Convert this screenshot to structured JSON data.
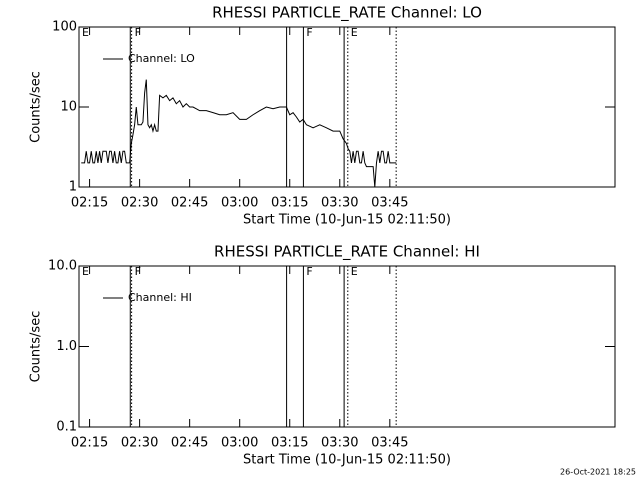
{
  "chart_data": [
    {
      "type": "line",
      "title": "RHESSI PARTICLE_RATE Channel: LO",
      "xlabel": "Start Time (10-Jun-15 02:11:50)",
      "ylabel": "Counts/sec",
      "log_y": true,
      "xlim": [
        131.83,
        292.5
      ],
      "ylim": [
        1,
        100
      ],
      "xticks": [
        {
          "value": 135,
          "label": "02:15"
        },
        {
          "value": 150,
          "label": "02:30"
        },
        {
          "value": 165,
          "label": "02:45"
        },
        {
          "value": 180,
          "label": "03:00"
        },
        {
          "value": 195,
          "label": "03:15"
        },
        {
          "value": 210,
          "label": "03:30"
        },
        {
          "value": 225,
          "label": "03:45"
        }
      ],
      "yticks": [
        1,
        10,
        100
      ],
      "events": [
        {
          "x": 147.2,
          "line": "solid"
        },
        {
          "x": 147.6,
          "line": "dotted"
        },
        {
          "x": 194.06,
          "line": "solid"
        },
        {
          "x": 199.1,
          "line": "solid"
        },
        {
          "x": 211.3,
          "line": "solid"
        },
        {
          "x": 212.4,
          "line": "dotted"
        },
        {
          "x": 226.9,
          "line": "dotted"
        }
      ],
      "event_labels": [
        {
          "x": 131.83,
          "text": "E"
        },
        {
          "x": 147.6,
          "text": "F"
        },
        {
          "x": 199.1,
          "text": "F"
        },
        {
          "x": 212.4,
          "text": "E"
        }
      ],
      "series": [
        {
          "name": "Channel: LO",
          "color": "#000000",
          "x": [
            132.5,
            133,
            133.5,
            134,
            134.5,
            135,
            135.5,
            136,
            136.5,
            137,
            137.5,
            138,
            138.5,
            139,
            139.5,
            140,
            140.5,
            141,
            141.5,
            142,
            142.5,
            143,
            143.5,
            144,
            144.5,
            145,
            145.5,
            146,
            146.5,
            147,
            147.5,
            148,
            148.5,
            149,
            149.5,
            150,
            150.5,
            151,
            151.5,
            152,
            152.5,
            153,
            153.5,
            154,
            154.5,
            155,
            155.5,
            156,
            157,
            158,
            159,
            160,
            161,
            162,
            163,
            164,
            165,
            166,
            167,
            168,
            170,
            172,
            174,
            176,
            178,
            180,
            182,
            184,
            186,
            188,
            190,
            192,
            194,
            195,
            196,
            197,
            198,
            199,
            200,
            202,
            204,
            206,
            208,
            210,
            211,
            212,
            212.5,
            213,
            213.5,
            214,
            214.5,
            215,
            215.5,
            216,
            216.5,
            217,
            217.5,
            218,
            219,
            220,
            220.5,
            221,
            221.5,
            222,
            222.5,
            223,
            223.5,
            224,
            224.5,
            225,
            226,
            226.9
          ],
          "values": [
            2,
            2,
            2,
            2.8,
            2,
            2,
            2.8,
            2,
            2,
            2.8,
            2,
            2.8,
            2,
            2.8,
            2.8,
            2.8,
            2,
            2.8,
            2.8,
            2,
            2.8,
            2,
            2,
            2.8,
            2,
            2.8,
            2.8,
            2,
            2,
            2,
            3.5,
            4.5,
            6,
            10,
            6,
            6,
            6,
            6.5,
            15,
            22,
            6,
            5.5,
            6,
            5,
            6,
            5,
            5,
            14,
            13,
            14,
            12,
            13,
            11,
            12,
            10,
            11,
            10,
            10,
            9.5,
            9,
            9,
            8.5,
            8,
            8,
            8.5,
            7,
            7,
            8,
            9,
            10,
            9.5,
            10,
            10,
            8,
            8.5,
            7.5,
            6.5,
            7,
            6,
            5.5,
            6,
            5.5,
            5,
            5,
            4,
            3.5,
            3,
            2.8,
            2,
            2.8,
            2,
            2.8,
            2.8,
            2,
            2,
            2.8,
            2,
            1.8,
            1.8,
            1.8,
            1,
            2,
            2.8,
            2,
            2.8,
            2.8,
            2,
            2,
            2.8,
            2,
            2,
            2
          ]
        }
      ]
    },
    {
      "type": "line",
      "title": "RHESSI PARTICLE_RATE Channel: HI",
      "xlabel": "Start Time (10-Jun-15 02:11:50)",
      "ylabel": "Counts/sec",
      "log_y": true,
      "xlim": [
        131.83,
        292.5
      ],
      "ylim": [
        0.1,
        10
      ],
      "xticks": [
        {
          "value": 135,
          "label": "02:15"
        },
        {
          "value": 150,
          "label": "02:30"
        },
        {
          "value": 165,
          "label": "02:45"
        },
        {
          "value": 180,
          "label": "03:00"
        },
        {
          "value": 195,
          "label": "03:15"
        },
        {
          "value": 210,
          "label": "03:30"
        },
        {
          "value": 225,
          "label": "03:45"
        }
      ],
      "yticks": [
        {
          "value": 0.1,
          "label": "0.1"
        },
        {
          "value": 1,
          "label": "1.0"
        },
        {
          "value": 10,
          "label": "10.0"
        }
      ],
      "events": [
        {
          "x": 147.2,
          "line": "solid"
        },
        {
          "x": 147.6,
          "line": "dotted"
        },
        {
          "x": 194.06,
          "line": "solid"
        },
        {
          "x": 199.1,
          "line": "solid"
        },
        {
          "x": 211.3,
          "line": "solid"
        },
        {
          "x": 212.4,
          "line": "dotted"
        },
        {
          "x": 226.9,
          "line": "dotted"
        }
      ],
      "event_labels": [
        {
          "x": 131.83,
          "text": "E"
        },
        {
          "x": 147.6,
          "text": "F"
        },
        {
          "x": 199.1,
          "text": "F"
        },
        {
          "x": 212.4,
          "text": "E"
        }
      ],
      "series": [
        {
          "name": "Channel: HI",
          "color": "#000000",
          "x": [],
          "values": []
        }
      ]
    }
  ],
  "footer": "26-Oct-2021 18:25"
}
